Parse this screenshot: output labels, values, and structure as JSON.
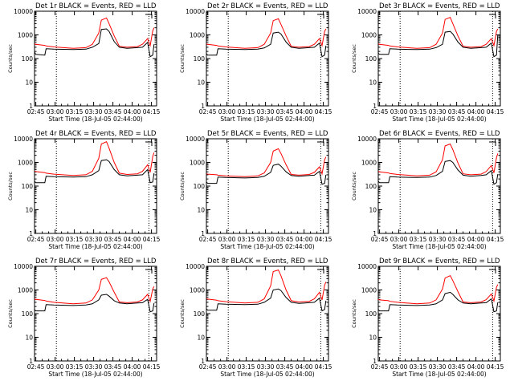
{
  "panel_title_suffix": " BLACK = Events, RED = LLD",
  "ylabel": "Counts/sec",
  "xlabel": "Start Time (18-Jul-05 02:44:00)",
  "x_ticks": [
    "02:45",
    "03:00",
    "03:15",
    "03:30",
    "03:45",
    "04:00",
    "04:15"
  ],
  "y_ticks": [
    "1",
    "10",
    "100",
    "1000",
    "10000"
  ],
  "colors": {
    "events": "#000000",
    "lld": "#ff0000",
    "axes": "#000000"
  },
  "chart_data": [
    {
      "type": "line",
      "title": "Det 1r BLACK = Events, RED = LLD",
      "xlabel": "Start Time (18-Jul-05 02:44:00)",
      "ylabel": "Counts/sec",
      "ylim": [
        1,
        10000
      ],
      "yscale": "log",
      "x_unit": "minutes since 02:44",
      "series": [
        {
          "x": [
            0,
            1,
            8,
            9,
            15,
            30,
            40,
            45,
            50,
            52,
            56,
            58,
            62,
            66,
            72,
            80,
            84,
            88,
            90,
            92,
            93
          ],
          "values": [
            190,
            150,
            140,
            260,
            250,
            240,
            250,
            300,
            430,
            1700,
            1800,
            1400,
            520,
            300,
            270,
            290,
            300,
            480,
            120,
            140,
            400
          ]
        },
        {
          "x": [
            0,
            1,
            8,
            9,
            15,
            30,
            40,
            45,
            50,
            52,
            56,
            58,
            62,
            66,
            72,
            80,
            84,
            88,
            90,
            92,
            93
          ],
          "values": [
            420,
            400,
            360,
            340,
            310,
            270,
            290,
            400,
            1200,
            4200,
            5200,
            3000,
            900,
            330,
            300,
            320,
            400,
            700,
            350,
            1500,
            2000
          ]
        }
      ]
    },
    {
      "type": "line",
      "title": "Det 2r BLACK = Events, RED = LLD",
      "xlabel": "Start Time (18-Jul-05 02:44:00)",
      "ylabel": "Counts/sec",
      "ylim": [
        1,
        10000
      ],
      "yscale": "log",
      "x_unit": "minutes since 02:44",
      "series": [
        {
          "x": [
            0,
            1,
            8,
            9,
            15,
            30,
            40,
            45,
            50,
            52,
            56,
            58,
            62,
            66,
            72,
            80,
            84,
            88,
            90,
            92,
            93
          ],
          "values": [
            160,
            140,
            140,
            260,
            250,
            240,
            250,
            280,
            400,
            1200,
            1300,
            1100,
            500,
            300,
            270,
            290,
            300,
            450,
            120,
            140,
            350
          ]
        },
        {
          "x": [
            0,
            1,
            8,
            9,
            15,
            30,
            40,
            45,
            50,
            52,
            56,
            58,
            62,
            66,
            72,
            80,
            84,
            88,
            90,
            92,
            93
          ],
          "values": [
            420,
            400,
            360,
            340,
            310,
            270,
            290,
            400,
            1200,
            4000,
            4800,
            2800,
            900,
            330,
            300,
            320,
            400,
            700,
            350,
            1400,
            1800
          ]
        }
      ]
    },
    {
      "type": "line",
      "title": "Det 3r BLACK = Events, RED = LLD",
      "xlabel": "Start Time (18-Jul-05 02:44:00)",
      "ylabel": "Counts/sec",
      "ylim": [
        1,
        10000
      ],
      "yscale": "log",
      "x_unit": "minutes since 02:44",
      "series": [
        {
          "x": [
            0,
            1,
            8,
            9,
            15,
            30,
            40,
            45,
            50,
            52,
            56,
            58,
            62,
            66,
            72,
            80,
            84,
            88,
            90,
            92,
            93
          ],
          "values": [
            170,
            150,
            150,
            260,
            250,
            240,
            250,
            290,
            400,
            1300,
            1400,
            1100,
            500,
            300,
            270,
            290,
            300,
            450,
            120,
            140,
            1000
          ]
        },
        {
          "x": [
            0,
            1,
            8,
            9,
            15,
            30,
            40,
            45,
            50,
            52,
            56,
            58,
            62,
            66,
            72,
            80,
            84,
            88,
            90,
            92,
            93
          ],
          "values": [
            420,
            400,
            360,
            340,
            310,
            270,
            290,
            400,
            1200,
            4500,
            5500,
            3000,
            900,
            330,
            300,
            320,
            400,
            700,
            350,
            1400,
            1800
          ]
        }
      ]
    },
    {
      "type": "line",
      "title": "Det 4r BLACK = Events, RED = LLD",
      "xlabel": "Start Time (18-Jul-05 02:44:00)",
      "ylabel": "Counts/sec",
      "ylim": [
        1,
        10000
      ],
      "yscale": "log",
      "x_unit": "minutes since 02:44",
      "series": [
        {
          "x": [
            0,
            1,
            8,
            9,
            15,
            30,
            40,
            45,
            50,
            52,
            56,
            58,
            62,
            66,
            72,
            80,
            84,
            88,
            90,
            92,
            93
          ],
          "values": [
            160,
            140,
            140,
            260,
            250,
            240,
            250,
            300,
            450,
            1200,
            1300,
            1100,
            500,
            300,
            270,
            290,
            300,
            500,
            140,
            150,
            350
          ]
        },
        {
          "x": [
            0,
            1,
            8,
            9,
            15,
            30,
            40,
            45,
            50,
            52,
            56,
            58,
            62,
            66,
            72,
            80,
            84,
            88,
            90,
            92,
            93
          ],
          "values": [
            430,
            410,
            370,
            350,
            320,
            280,
            300,
            420,
            1500,
            6000,
            7500,
            4000,
            1000,
            350,
            310,
            330,
            420,
            800,
            380,
            1800,
            2600
          ]
        }
      ]
    },
    {
      "type": "line",
      "title": "Det 5r BLACK = Events, RED = LLD",
      "xlabel": "Start Time (18-Jul-05 02:44:00)",
      "ylabel": "Counts/sec",
      "ylim": [
        1,
        10000
      ],
      "yscale": "log",
      "x_unit": "minutes since 02:44",
      "series": [
        {
          "x": [
            0,
            1,
            8,
            9,
            15,
            30,
            40,
            45,
            50,
            52,
            56,
            58,
            62,
            66,
            72,
            80,
            84,
            88,
            90,
            92,
            93
          ],
          "values": [
            150,
            130,
            130,
            240,
            230,
            220,
            230,
            260,
            380,
            750,
            850,
            700,
            400,
            280,
            260,
            280,
            290,
            420,
            120,
            130,
            300
          ]
        },
        {
          "x": [
            0,
            1,
            8,
            9,
            15,
            30,
            40,
            45,
            50,
            52,
            56,
            58,
            62,
            66,
            72,
            80,
            84,
            88,
            90,
            92,
            93
          ],
          "values": [
            330,
            320,
            300,
            290,
            270,
            250,
            270,
            360,
            1000,
            3000,
            3800,
            2400,
            800,
            310,
            290,
            310,
            380,
            650,
            330,
            1300,
            1700
          ]
        }
      ]
    },
    {
      "type": "line",
      "title": "Det 6r BLACK = Events, RED = LLD",
      "xlabel": "Start Time (18-Jul-05 02:44:00)",
      "ylabel": "Counts/sec",
      "ylim": [
        1,
        10000
      ],
      "yscale": "log",
      "x_unit": "minutes since 02:44",
      "series": [
        {
          "x": [
            0,
            1,
            8,
            9,
            15,
            30,
            40,
            45,
            50,
            52,
            56,
            58,
            62,
            66,
            72,
            80,
            84,
            88,
            90,
            92,
            93
          ],
          "values": [
            160,
            140,
            140,
            250,
            240,
            230,
            240,
            280,
            420,
            1100,
            1200,
            1000,
            480,
            290,
            260,
            280,
            300,
            450,
            120,
            140,
            320
          ]
        },
        {
          "x": [
            0,
            1,
            8,
            9,
            15,
            30,
            40,
            45,
            50,
            52,
            56,
            58,
            62,
            66,
            72,
            80,
            84,
            88,
            90,
            92,
            93
          ],
          "values": [
            420,
            400,
            360,
            340,
            310,
            270,
            290,
            400,
            1300,
            5000,
            6000,
            3500,
            950,
            330,
            300,
            320,
            410,
            750,
            360,
            1600,
            2400
          ]
        }
      ]
    },
    {
      "type": "line",
      "title": "Det 7r BLACK = Events, RED = LLD",
      "xlabel": "Start Time (18-Jul-05 02:44:00)",
      "ylabel": "Counts/sec",
      "ylim": [
        1,
        10000
      ],
      "yscale": "log",
      "x_unit": "minutes since 02:44",
      "series": [
        {
          "x": [
            0,
            1,
            8,
            9,
            15,
            30,
            40,
            45,
            50,
            52,
            56,
            58,
            62,
            66,
            72,
            80,
            84,
            88,
            90,
            92,
            93
          ],
          "values": [
            150,
            130,
            130,
            240,
            230,
            220,
            230,
            260,
            380,
            600,
            650,
            550,
            350,
            280,
            260,
            280,
            290,
            400,
            120,
            130,
            280
          ]
        },
        {
          "x": [
            0,
            1,
            8,
            9,
            15,
            30,
            40,
            45,
            50,
            52,
            56,
            58,
            62,
            66,
            72,
            80,
            84,
            88,
            90,
            92,
            93
          ],
          "values": [
            420,
            400,
            360,
            340,
            300,
            260,
            280,
            380,
            1000,
            2800,
            3300,
            2200,
            800,
            310,
            290,
            310,
            380,
            650,
            330,
            1100,
            1400
          ]
        }
      ]
    },
    {
      "type": "line",
      "title": "Det 8r BLACK = Events, RED = LLD",
      "xlabel": "Start Time (18-Jul-05 02:44:00)",
      "ylabel": "Counts/sec",
      "ylim": [
        1,
        10000
      ],
      "yscale": "log",
      "x_unit": "minutes since 02:44",
      "series": [
        {
          "x": [
            0,
            1,
            8,
            9,
            15,
            30,
            40,
            45,
            50,
            52,
            56,
            58,
            62,
            66,
            72,
            80,
            84,
            88,
            90,
            92,
            93
          ],
          "values": [
            160,
            140,
            140,
            260,
            250,
            240,
            250,
            300,
            450,
            1000,
            1100,
            950,
            480,
            300,
            270,
            290,
            300,
            450,
            130,
            150,
            350
          ]
        },
        {
          "x": [
            0,
            1,
            8,
            9,
            15,
            30,
            40,
            45,
            50,
            52,
            56,
            58,
            62,
            66,
            72,
            80,
            84,
            88,
            90,
            92,
            93
          ],
          "values": [
            430,
            410,
            370,
            350,
            320,
            280,
            300,
            420,
            1500,
            6000,
            7000,
            4000,
            1000,
            350,
            310,
            330,
            420,
            800,
            380,
            1600,
            2200
          ]
        }
      ]
    },
    {
      "type": "line",
      "title": "Det 9r BLACK = Events, RED = LLD",
      "xlabel": "Start Time (18-Jul-05 02:44:00)",
      "ylabel": "Counts/sec",
      "ylim": [
        1,
        10000
      ],
      "yscale": "log",
      "x_unit": "minutes since 02:44",
      "series": [
        {
          "x": [
            0,
            1,
            8,
            9,
            15,
            30,
            40,
            45,
            50,
            52,
            56,
            58,
            62,
            66,
            72,
            80,
            84,
            88,
            90,
            92,
            93
          ],
          "values": [
            150,
            130,
            130,
            240,
            230,
            220,
            230,
            260,
            380,
            700,
            800,
            650,
            380,
            280,
            260,
            280,
            290,
            420,
            120,
            130,
            300
          ]
        },
        {
          "x": [
            0,
            1,
            8,
            9,
            15,
            30,
            40,
            45,
            50,
            52,
            56,
            58,
            62,
            66,
            72,
            80,
            84,
            88,
            90,
            92,
            93
          ],
          "values": [
            400,
            380,
            350,
            330,
            300,
            260,
            280,
            380,
            1100,
            3200,
            4000,
            2500,
            850,
            310,
            290,
            310,
            390,
            680,
            340,
            1300,
            1700
          ]
        }
      ]
    }
  ]
}
